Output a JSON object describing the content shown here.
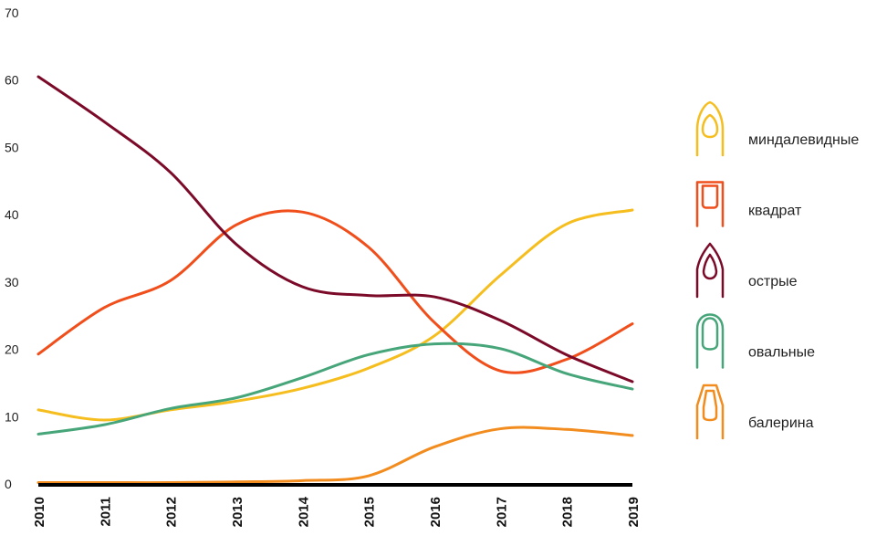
{
  "chart_data": {
    "type": "line",
    "title": "",
    "xlabel": "",
    "ylabel": "",
    "x": [
      2010,
      2011,
      2012,
      2013,
      2014,
      2015,
      2016,
      2017,
      2018,
      2019
    ],
    "ylim": [
      0,
      70
    ],
    "yticks": [
      0,
      10,
      20,
      30,
      40,
      50,
      60,
      70
    ],
    "grid": false,
    "legend_position": "right",
    "series": [
      {
        "name": "миндалевидные",
        "shape": "almond",
        "color": "#F5BE1E",
        "values": [
          11,
          9.5,
          11,
          12.3,
          14.2,
          17.2,
          22,
          31,
          38.6,
          40.7
        ]
      },
      {
        "name": "квадрат",
        "shape": "square",
        "color": "#F04E1B",
        "values": [
          19.3,
          26.2,
          30.2,
          38.5,
          40.4,
          35.2,
          24,
          16.8,
          18.5,
          23.8
        ]
      },
      {
        "name": "острые",
        "shape": "stiletto",
        "color": "#7B0A29",
        "values": [
          60.5,
          53.8,
          46.3,
          35.6,
          29.3,
          28.0,
          27.8,
          24.3,
          19.2,
          15.2
        ]
      },
      {
        "name": "овальные",
        "shape": "oval",
        "color": "#47A57A",
        "values": [
          7.4,
          8.8,
          11.2,
          12.8,
          15.8,
          19.2,
          20.8,
          20.1,
          16.4,
          14.1
        ]
      },
      {
        "name": "балерина",
        "shape": "ballerina",
        "color": "#F28C1E",
        "values": [
          0.2,
          0.2,
          0.2,
          0.3,
          0.5,
          1.2,
          5.5,
          8.2,
          8.1,
          7.2
        ]
      }
    ]
  }
}
